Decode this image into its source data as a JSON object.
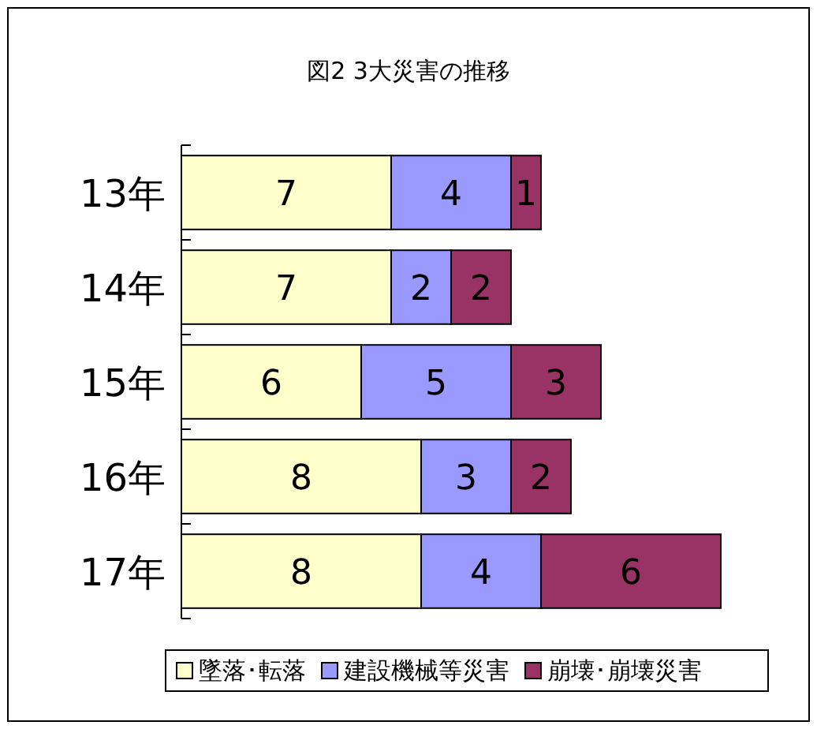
{
  "chart_data": {
    "type": "bar",
    "orientation": "horizontal",
    "stacked": true,
    "title": "図2  3大災害の推移",
    "categories": [
      "13年",
      "14年",
      "15年",
      "16年",
      "17年"
    ],
    "series": [
      {
        "name": "墜落･転落",
        "color": "#ffffcc",
        "values": [
          7,
          7,
          6,
          8,
          8
        ]
      },
      {
        "name": "建設機械等災害",
        "color": "#9999ff",
        "values": [
          4,
          2,
          5,
          3,
          4
        ]
      },
      {
        "name": "崩壊･崩壊災害",
        "color": "#993366",
        "values": [
          1,
          2,
          3,
          2,
          6
        ]
      }
    ],
    "data_labels": true,
    "tick_labels": "y",
    "legend": "bottom"
  }
}
